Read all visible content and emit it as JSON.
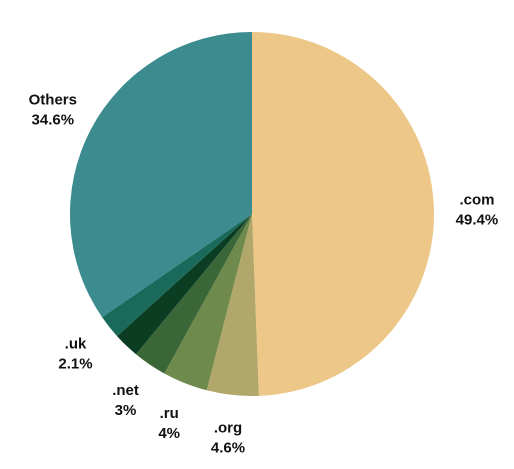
{
  "chart_data": {
    "type": "pie",
    "categories": [
      ".com",
      ".org",
      ".ru",
      ".net",
      null,
      ".uk",
      "Others"
    ],
    "values": [
      49.4,
      4.6,
      4,
      3,
      2.3,
      2.1,
      34.6
    ],
    "value_labels": [
      "49.4%",
      "4.6%",
      "4%",
      "3%",
      null,
      "2.1%",
      "34.6%"
    ],
    "colors": [
      "#ecc788",
      "#b1a76a",
      "#6e8a4c",
      "#3b6638",
      "#0b3d22",
      "#1a6a5c",
      "#3b8b8f"
    ]
  }
}
